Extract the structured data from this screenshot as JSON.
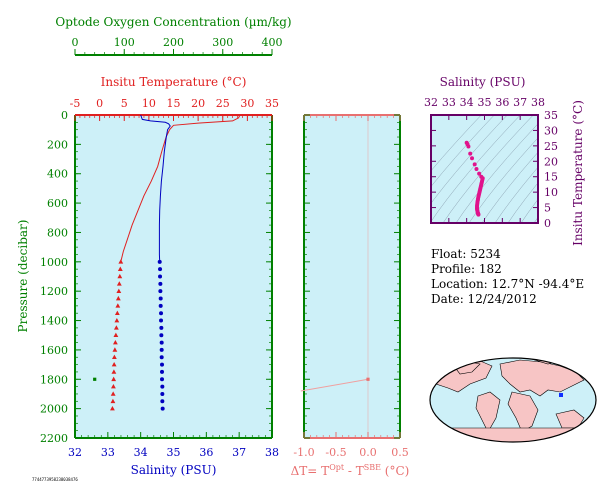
{
  "colors": {
    "panel_bg": "#cdf0f8",
    "oxygen": "#008000",
    "temperature": "#e02020",
    "salinity": "#0000c0",
    "dt": "#e87070",
    "ts_frame": "#660066",
    "ts_points": "#e0138c",
    "land": "#f7c5c5",
    "ocean": "#cdf0f8"
  },
  "info": {
    "float": "Float:  5234",
    "profile": "Profile:  182",
    "location": "Location:  12.7°N  -94.4°E",
    "date": "Date:  12/24/2012"
  },
  "footer_text": "7744773958238038476",
  "chart_data": [
    {
      "type": "line",
      "name": "main-profile",
      "ylabel": "Pressure (decibar)",
      "ylim": [
        2200,
        0
      ],
      "yticks": [
        0,
        200,
        400,
        600,
        800,
        1000,
        1200,
        1400,
        1600,
        1800,
        2000,
        2200
      ],
      "axes": {
        "oxygen": {
          "label": "Optode Oxygen Concentration (µm/kg)",
          "lim": [
            0,
            400
          ],
          "ticks": [
            0,
            100,
            200,
            300,
            400
          ]
        },
        "temperature": {
          "label": "Insitu Temperature (°C)",
          "lim": [
            -5,
            35
          ],
          "ticks": [
            -5,
            0,
            5,
            10,
            15,
            20,
            25,
            30,
            35
          ]
        },
        "salinity": {
          "label": "Salinity (PSU)",
          "lim": [
            32,
            38
          ],
          "ticks": [
            32,
            33,
            34,
            35,
            36,
            37,
            38
          ]
        }
      },
      "series": [
        {
          "name": "Temperature",
          "axis": "temperature",
          "line": [
            [
              28.5,
              0
            ],
            [
              28.2,
              20
            ],
            [
              27,
              40
            ],
            [
              20,
              55
            ],
            [
              15,
              70
            ],
            [
              14.2,
              100
            ],
            [
              13.5,
              150
            ],
            [
              12.6,
              250
            ],
            [
              11.8,
              350
            ],
            [
              10.5,
              450
            ],
            [
              9,
              550
            ],
            [
              7.8,
              650
            ],
            [
              6.6,
              750
            ],
            [
              5.6,
              850
            ],
            [
              4.8,
              930
            ],
            [
              4.3,
              1000
            ]
          ],
          "points": [
            [
              4.3,
              1000
            ],
            [
              4.2,
              1050
            ],
            [
              4.1,
              1100
            ],
            [
              4.0,
              1150
            ],
            [
              3.9,
              1200
            ],
            [
              3.8,
              1250
            ],
            [
              3.7,
              1300
            ],
            [
              3.6,
              1350
            ],
            [
              3.5,
              1400
            ],
            [
              3.4,
              1450
            ],
            [
              3.3,
              1500
            ],
            [
              3.2,
              1550
            ],
            [
              3.1,
              1600
            ],
            [
              3.0,
              1650
            ],
            [
              2.95,
              1700
            ],
            [
              2.9,
              1750
            ],
            [
              2.85,
              1800
            ],
            [
              2.8,
              1850
            ],
            [
              2.75,
              1900
            ],
            [
              2.7,
              1950
            ],
            [
              2.6,
              2000
            ]
          ]
        },
        {
          "name": "Salinity",
          "axis": "salinity",
          "line": [
            [
              34.0,
              0
            ],
            [
              34.05,
              30
            ],
            [
              34.3,
              40
            ],
            [
              34.75,
              50
            ],
            [
              34.85,
              60
            ],
            [
              34.9,
              75
            ],
            [
              34.82,
              100
            ],
            [
              34.78,
              150
            ],
            [
              34.72,
              250
            ],
            [
              34.68,
              350
            ],
            [
              34.63,
              450
            ],
            [
              34.6,
              550
            ],
            [
              34.58,
              650
            ],
            [
              34.57,
              750
            ],
            [
              34.57,
              850
            ],
            [
              34.57,
              950
            ],
            [
              34.58,
              1000
            ]
          ],
          "points": [
            [
              34.58,
              1000
            ],
            [
              34.59,
              1050
            ],
            [
              34.59,
              1100
            ],
            [
              34.6,
              1150
            ],
            [
              34.6,
              1200
            ],
            [
              34.61,
              1250
            ],
            [
              34.61,
              1300
            ],
            [
              34.62,
              1350
            ],
            [
              34.62,
              1400
            ],
            [
              34.63,
              1450
            ],
            [
              34.63,
              1500
            ],
            [
              34.64,
              1550
            ],
            [
              34.64,
              1600
            ],
            [
              34.64,
              1650
            ],
            [
              34.65,
              1700
            ],
            [
              34.65,
              1750
            ],
            [
              34.65,
              1800
            ],
            [
              34.66,
              1850
            ],
            [
              34.66,
              1900
            ],
            [
              34.66,
              1950
            ],
            [
              34.67,
              2000
            ]
          ]
        },
        {
          "name": "Oxygen",
          "axis": "oxygen",
          "line": [],
          "points": [
            [
              40,
              1800
            ]
          ]
        }
      ]
    },
    {
      "type": "line",
      "name": "dt-profile",
      "xlabel": "ΔT= T^Opt - T^SBE (°C)",
      "xlim": [
        -1.0,
        0.5
      ],
      "xticks": [
        -1.0,
        -0.5,
        0.0,
        0.5
      ],
      "ylim": [
        2200,
        0
      ],
      "series": [
        {
          "name": "dT",
          "line": [
            [
              -1.05,
              1880
            ],
            [
              0.0,
              1800
            ]
          ],
          "points": [
            [
              0.0,
              1800
            ]
          ]
        }
      ]
    },
    {
      "type": "scatter",
      "name": "ts-diagram",
      "xlabel": "Salinity (PSU)",
      "xlim": [
        32,
        38
      ],
      "xticks": [
        32,
        33,
        34,
        35,
        36,
        37,
        38
      ],
      "ylabel": "Insitu Temperature (°C)",
      "ylim": [
        0,
        35
      ],
      "yticks": [
        0,
        5,
        10,
        15,
        20,
        25,
        30,
        35
      ],
      "points": [
        [
          34.0,
          26
        ],
        [
          34.05,
          25.5
        ],
        [
          34.1,
          24.8
        ],
        [
          34.2,
          22.5
        ],
        [
          34.3,
          21
        ],
        [
          34.45,
          19
        ],
        [
          34.55,
          17.5
        ],
        [
          34.7,
          16
        ],
        [
          34.82,
          15
        ],
        [
          34.9,
          14.5
        ],
        [
          34.88,
          14
        ],
        [
          34.86,
          13.5
        ],
        [
          34.84,
          13
        ],
        [
          34.82,
          12.5
        ],
        [
          34.8,
          12
        ],
        [
          34.78,
          11.5
        ],
        [
          34.76,
          11
        ],
        [
          34.74,
          10.5
        ],
        [
          34.72,
          10
        ],
        [
          34.7,
          9.5
        ],
        [
          34.68,
          9
        ],
        [
          34.66,
          8.5
        ],
        [
          34.64,
          8
        ],
        [
          34.63,
          7.5
        ],
        [
          34.61,
          7
        ],
        [
          34.6,
          6.5
        ],
        [
          34.59,
          6
        ],
        [
          34.58,
          5.5
        ],
        [
          34.58,
          5
        ],
        [
          34.58,
          4.6
        ],
        [
          34.59,
          4.3
        ],
        [
          34.6,
          4
        ],
        [
          34.61,
          3.7
        ],
        [
          34.62,
          3.4
        ],
        [
          34.63,
          3.2
        ],
        [
          34.64,
          3
        ],
        [
          34.65,
          2.9
        ],
        [
          34.66,
          2.7
        ]
      ]
    }
  ]
}
